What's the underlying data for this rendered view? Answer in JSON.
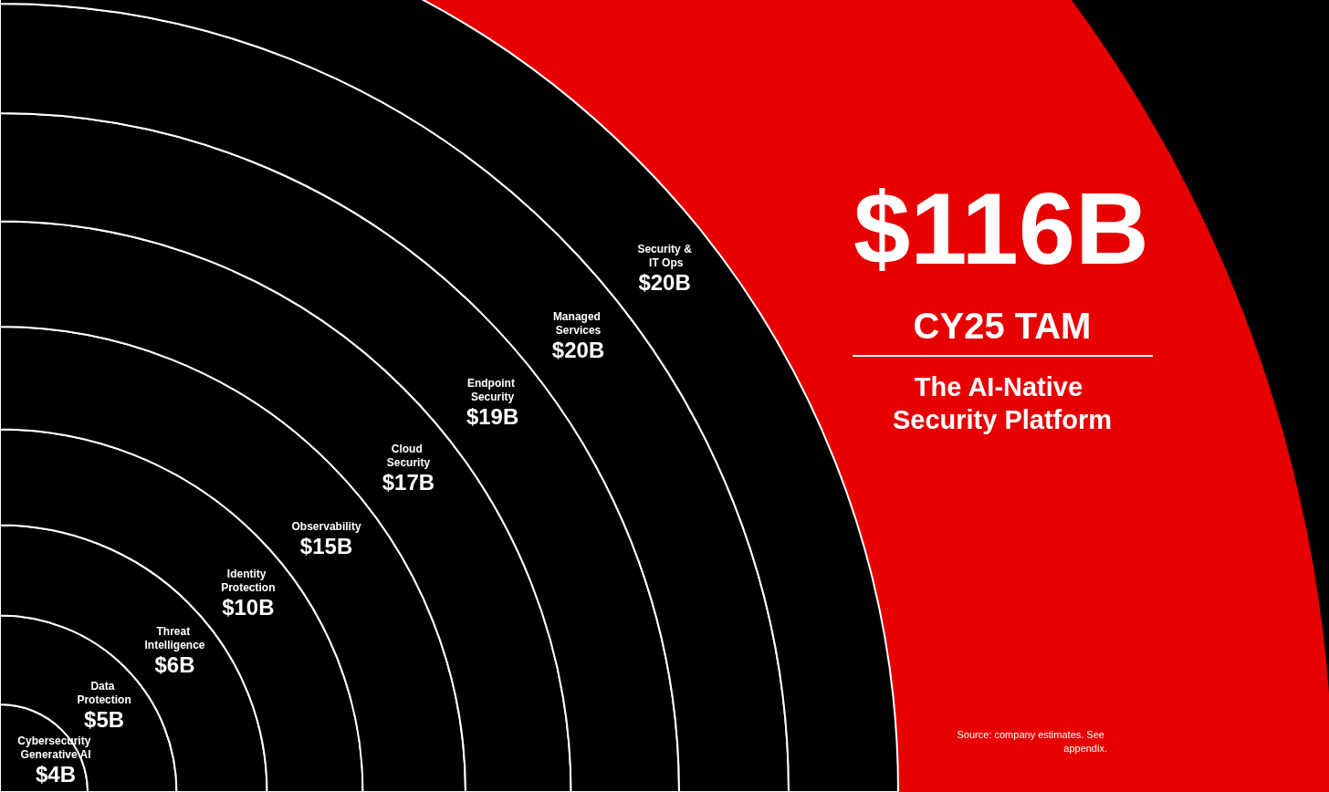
{
  "chart_data": {
    "type": "other",
    "title": "$116B",
    "subtitle": "CY25 TAM",
    "categories": [
      "Cybersecurity Generative AI",
      "Data Protection",
      "Threat Intelligence",
      "Identity Protection",
      "Observability",
      "Cloud Security",
      "Endpoint Security",
      "Managed Services",
      "Security & IT Ops"
    ],
    "values": [
      4,
      5,
      6,
      10,
      15,
      17,
      19,
      20,
      20
    ],
    "value_labels": [
      "$4B",
      "$5B",
      "$6B",
      "$10B",
      "$15B",
      "$17B",
      "$19B",
      "$20B",
      "$20B"
    ],
    "colors": [
      "#000000",
      "#000000",
      "#000000",
      "#000000",
      "#000000",
      "#000000",
      "#000000",
      "#000000",
      "#000000"
    ],
    "annotations": [
      "The AI-Native Security Platform",
      "Source: company estimates. See appendix."
    ]
  }
}
